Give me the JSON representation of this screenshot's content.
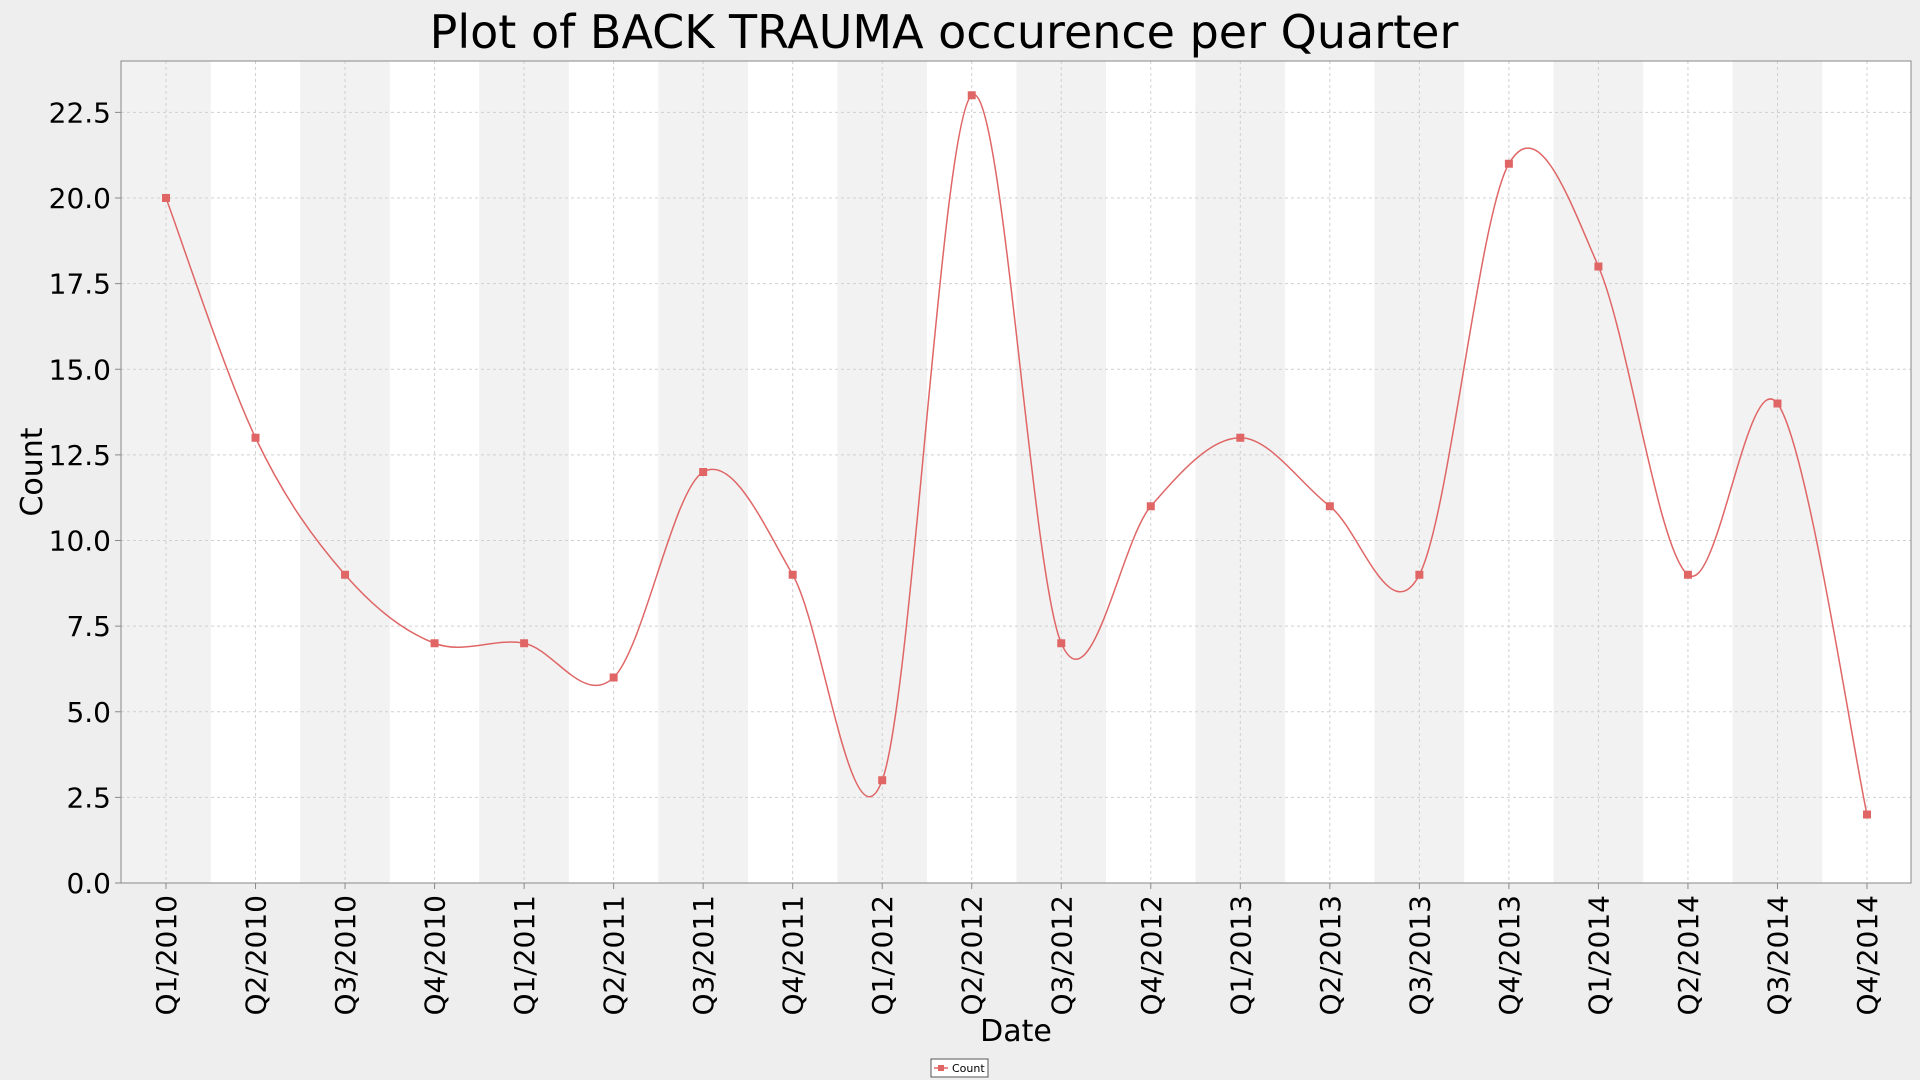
{
  "chart_data": {
    "type": "line",
    "title": "Plot of BACK TRAUMA occurence per Quarter",
    "xlabel": "Date",
    "ylabel": "Count",
    "ylim": [
      0,
      24
    ],
    "yticks": [
      "0.0",
      "2.5",
      "5.0",
      "7.5",
      "10.0",
      "12.5",
      "15.0",
      "17.5",
      "20.0",
      "22.5"
    ],
    "categories": [
      "Q1/2010",
      "Q2/2010",
      "Q3/2010",
      "Q4/2010",
      "Q1/2011",
      "Q2/2011",
      "Q3/2011",
      "Q4/2011",
      "Q1/2012",
      "Q2/2012",
      "Q3/2012",
      "Q4/2012",
      "Q1/2013",
      "Q2/2013",
      "Q3/2013",
      "Q4/2013",
      "Q1/2014",
      "Q2/2014",
      "Q3/2014",
      "Q4/2014"
    ],
    "series": [
      {
        "name": "Count",
        "values": [
          20,
          13,
          9,
          7,
          7,
          6,
          12,
          9,
          3,
          23,
          7,
          11,
          13,
          11,
          9,
          21,
          18,
          9,
          14,
          2
        ],
        "color": "#e06666"
      }
    ],
    "grid": true,
    "legend_position": "bottom-center",
    "colors": {
      "background": "#eeeeee",
      "band_dark": "#f2f2f2",
      "band_light": "#ffffff",
      "gridline": "#d0d0d0"
    }
  }
}
